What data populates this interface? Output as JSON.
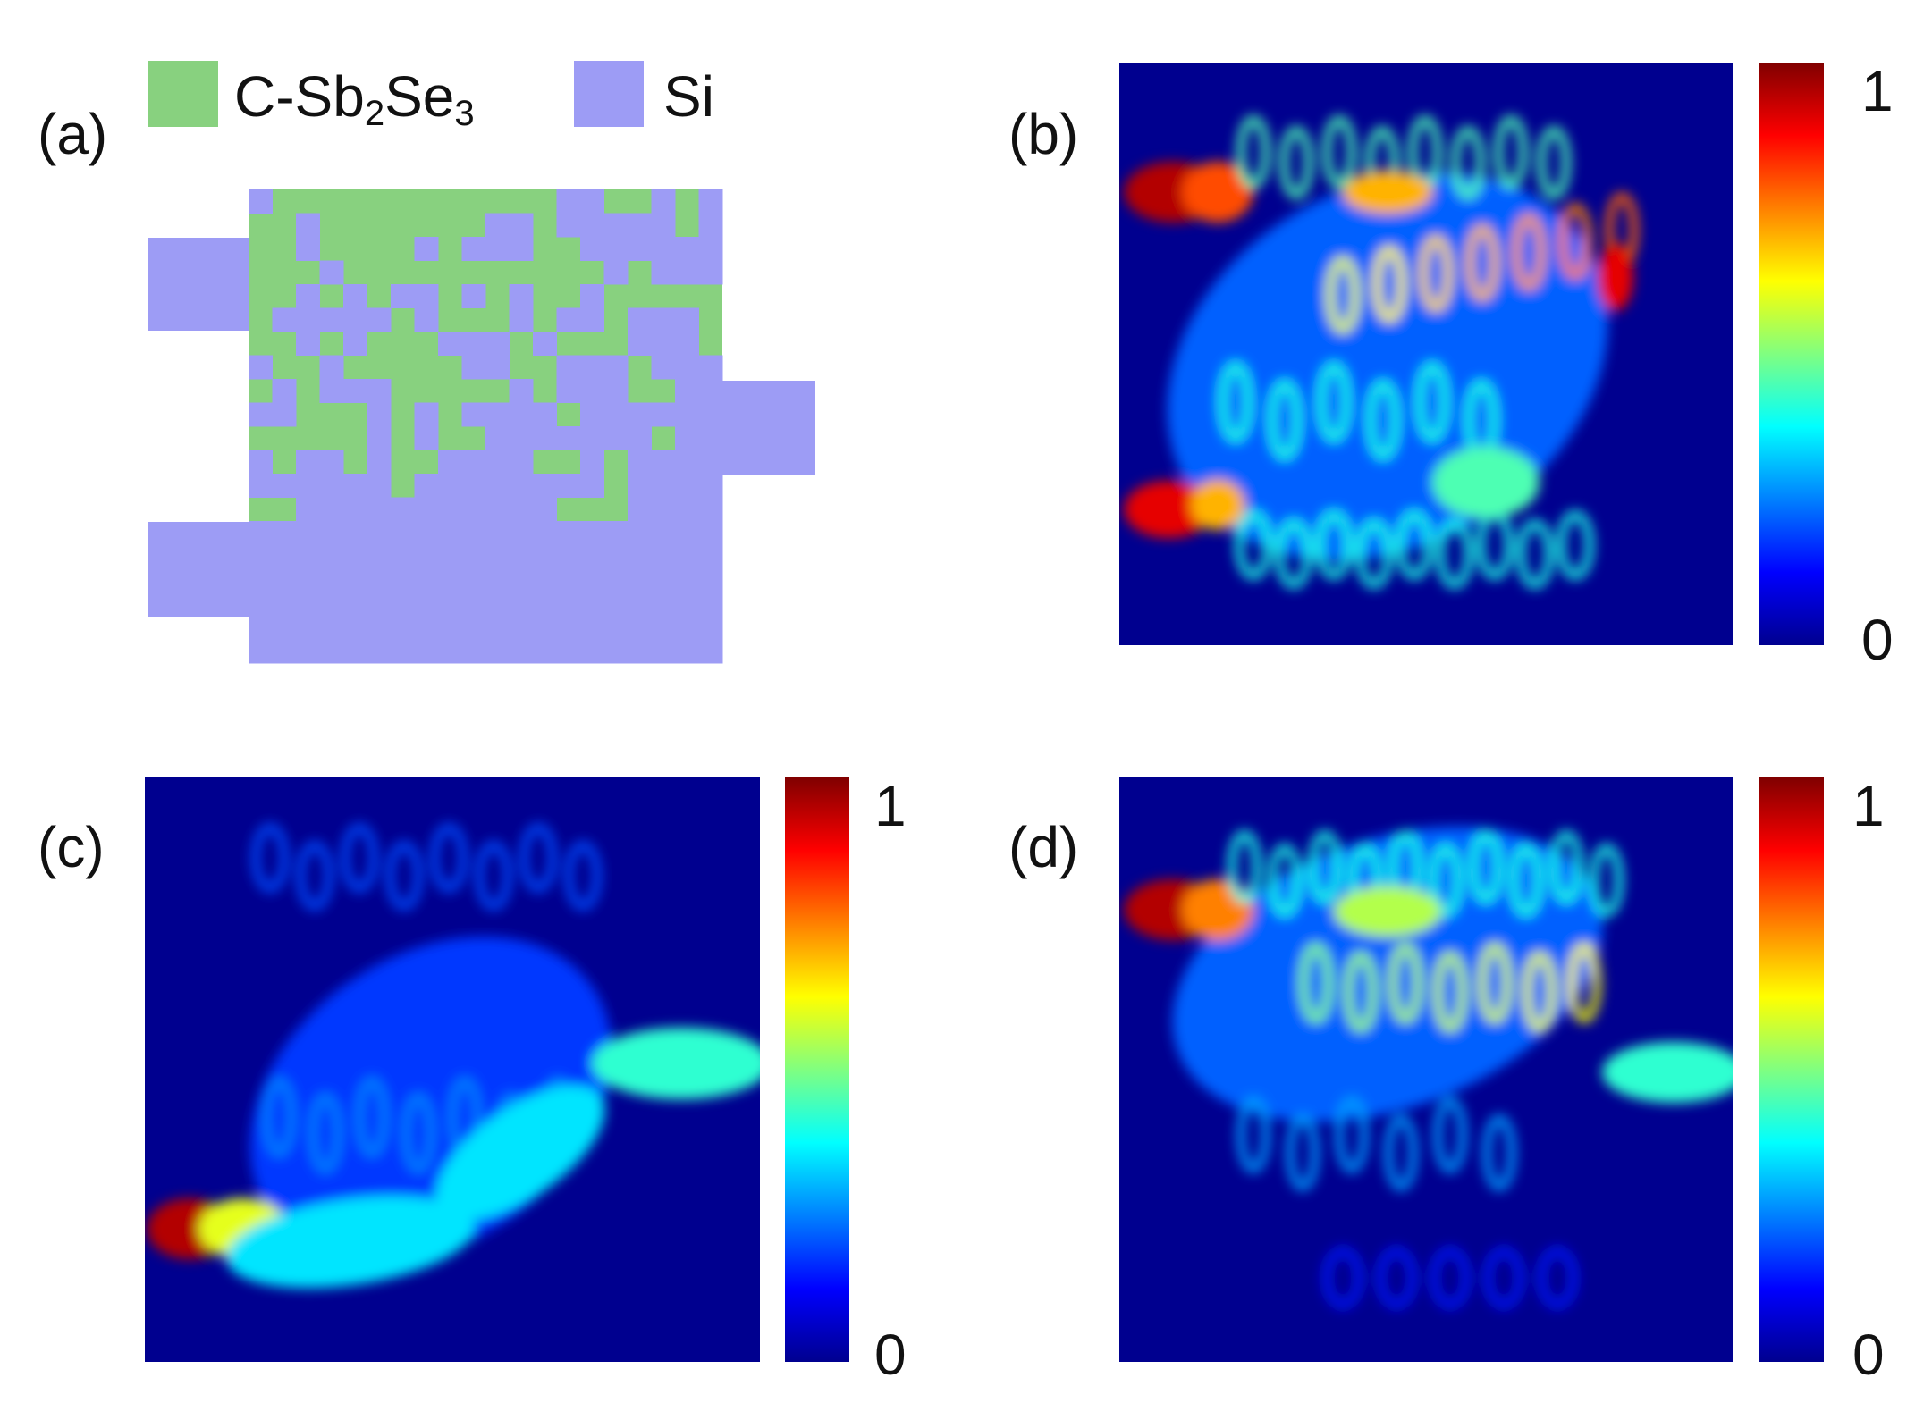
{
  "figure": {
    "panels": {
      "a": {
        "label": "(a)"
      },
      "b": {
        "label": "(b)"
      },
      "c": {
        "label": "(c)"
      },
      "d": {
        "label": "(d)"
      }
    },
    "legend": [
      {
        "name": "C-Sb",
        "sub1": "2",
        "mid": "Se",
        "sub2": "3",
        "color": "#88d17f"
      },
      {
        "name": "Si",
        "color": "#9d9cf5"
      }
    ],
    "colorbar": {
      "max_label": "1",
      "min_label": "0",
      "colormap": "jet"
    },
    "colors": {
      "c_sb2se3": "#88d17f",
      "si": "#9d9cf5",
      "field_background": "#00008f"
    }
  }
}
